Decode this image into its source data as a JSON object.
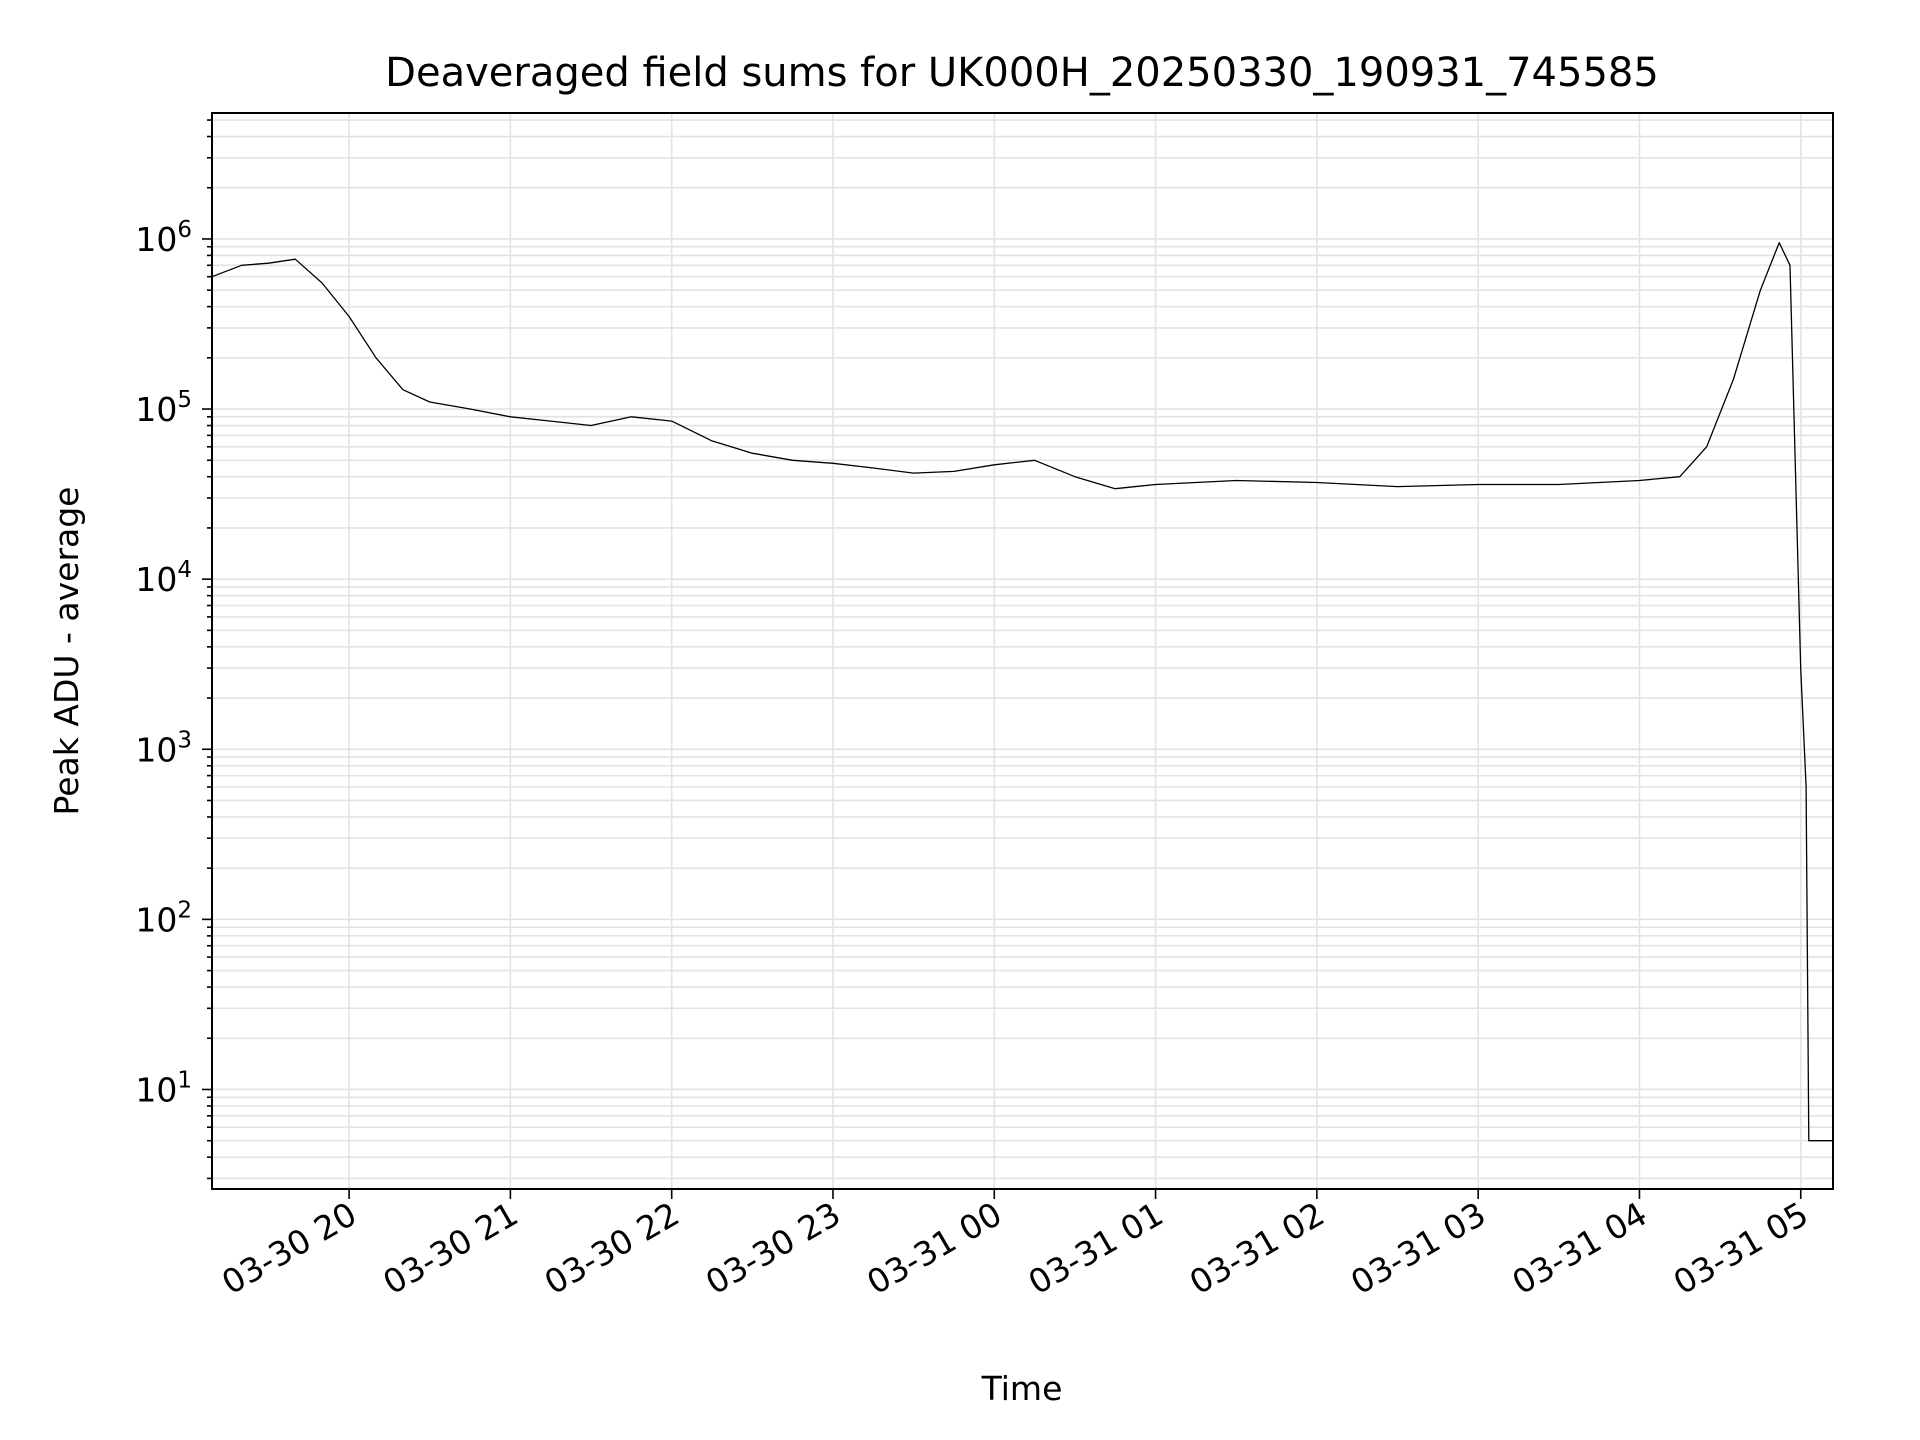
{
  "chart_data": {
    "type": "line",
    "title": "Deaveraged field sums for UK000H_20250330_190931_745585",
    "xlabel": "Time",
    "ylabel": "Peak ADU - average",
    "yscale": "log",
    "grid": true,
    "grid_minor": true,
    "ylim": [
      2.6,
      5500000
    ],
    "xlim": [
      "2025-03-30 19:09",
      "2025-03-31 05:12"
    ],
    "x_tick_labels": [
      "03-30 20",
      "03-30 21",
      "03-30 22",
      "03-30 23",
      "03-31 00",
      "03-31 01",
      "03-31 02",
      "03-31 03",
      "03-31 04",
      "03-31 05"
    ],
    "x_ticks": [
      "2025-03-30 20:00",
      "2025-03-30 21:00",
      "2025-03-30 22:00",
      "2025-03-30 23:00",
      "2025-03-31 00:00",
      "2025-03-31 01:00",
      "2025-03-31 02:00",
      "2025-03-31 03:00",
      "2025-03-31 04:00",
      "2025-03-31 05:00"
    ],
    "y_ticks": [
      {
        "value": 10,
        "base": "10",
        "exp": "1"
      },
      {
        "value": 100,
        "base": "10",
        "exp": "2"
      },
      {
        "value": 1000,
        "base": "10",
        "exp": "3"
      },
      {
        "value": 10000,
        "base": "10",
        "exp": "4"
      },
      {
        "value": 100000,
        "base": "10",
        "exp": "5"
      },
      {
        "value": 1000000,
        "base": "10",
        "exp": "6"
      }
    ],
    "series": [
      {
        "color": "#000000",
        "x": [
          "2025-03-30 19:09",
          "2025-03-30 19:20",
          "2025-03-30 19:30",
          "2025-03-30 19:40",
          "2025-03-30 19:50",
          "2025-03-30 20:00",
          "2025-03-30 20:10",
          "2025-03-30 20:20",
          "2025-03-30 20:30",
          "2025-03-30 20:45",
          "2025-03-30 21:00",
          "2025-03-30 21:15",
          "2025-03-30 21:30",
          "2025-03-30 21:45",
          "2025-03-30 22:00",
          "2025-03-30 22:15",
          "2025-03-30 22:30",
          "2025-03-30 22:45",
          "2025-03-30 23:00",
          "2025-03-30 23:15",
          "2025-03-30 23:30",
          "2025-03-30 23:45",
          "2025-03-31 00:00",
          "2025-03-31 00:15",
          "2025-03-31 00:30",
          "2025-03-31 00:45",
          "2025-03-31 01:00",
          "2025-03-31 01:30",
          "2025-03-31 02:00",
          "2025-03-31 02:30",
          "2025-03-31 03:00",
          "2025-03-31 03:30",
          "2025-03-31 04:00",
          "2025-03-31 04:15",
          "2025-03-31 04:25",
          "2025-03-31 04:35",
          "2025-03-31 04:45",
          "2025-03-31 04:52",
          "2025-03-31 04:56",
          "2025-03-31 05:00",
          "2025-03-31 05:02",
          "2025-03-31 05:03",
          "2025-03-31 05:12"
        ],
        "values": [
          600000,
          700000,
          720000,
          760000,
          550000,
          350000,
          200000,
          130000,
          110000,
          100000,
          90000,
          85000,
          80000,
          90000,
          85000,
          65000,
          55000,
          50000,
          48000,
          45000,
          42000,
          43000,
          47000,
          50000,
          40000,
          34000,
          36000,
          38000,
          37000,
          35000,
          36000,
          36000,
          38000,
          40000,
          60000,
          150000,
          500000,
          950000,
          700000,
          3000,
          600,
          5,
          5
        ]
      }
    ]
  }
}
